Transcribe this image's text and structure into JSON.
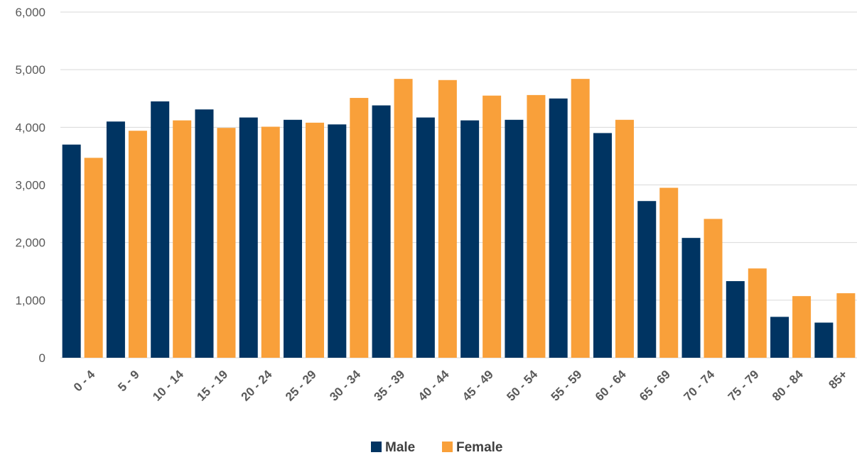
{
  "chart_data": {
    "type": "bar",
    "title": "",
    "xlabel": "",
    "ylabel": "",
    "categories": [
      "0 - 4",
      "5 - 9",
      "10 - 14",
      "15 - 19",
      "20 - 24",
      "25 - 29",
      "30 - 34",
      "35 - 39",
      "40 - 44",
      "45 - 49",
      "50 - 54",
      "55 - 59",
      "60 - 64",
      "65 - 69",
      "70 - 74",
      "75 - 79",
      "80 - 84",
      "85+"
    ],
    "series": [
      {
        "name": "Male",
        "color": "#003462",
        "values": [
          3700,
          4100,
          4450,
          4310,
          4170,
          4130,
          4050,
          4380,
          4170,
          4120,
          4130,
          4500,
          3900,
          2720,
          2080,
          1330,
          710,
          610
        ]
      },
      {
        "name": "Female",
        "color": "#f9a03a",
        "values": [
          3470,
          3940,
          4120,
          3990,
          4010,
          4080,
          4510,
          4840,
          4820,
          4550,
          4560,
          4840,
          4130,
          2950,
          2410,
          1550,
          1070,
          1120
        ]
      }
    ],
    "ylim": [
      0,
      6000
    ],
    "yticks": [
      "0",
      "1,000",
      "2,000",
      "3,000",
      "4,000",
      "5,000",
      "6,000"
    ],
    "grid": true,
    "legend": "bottom-center"
  }
}
